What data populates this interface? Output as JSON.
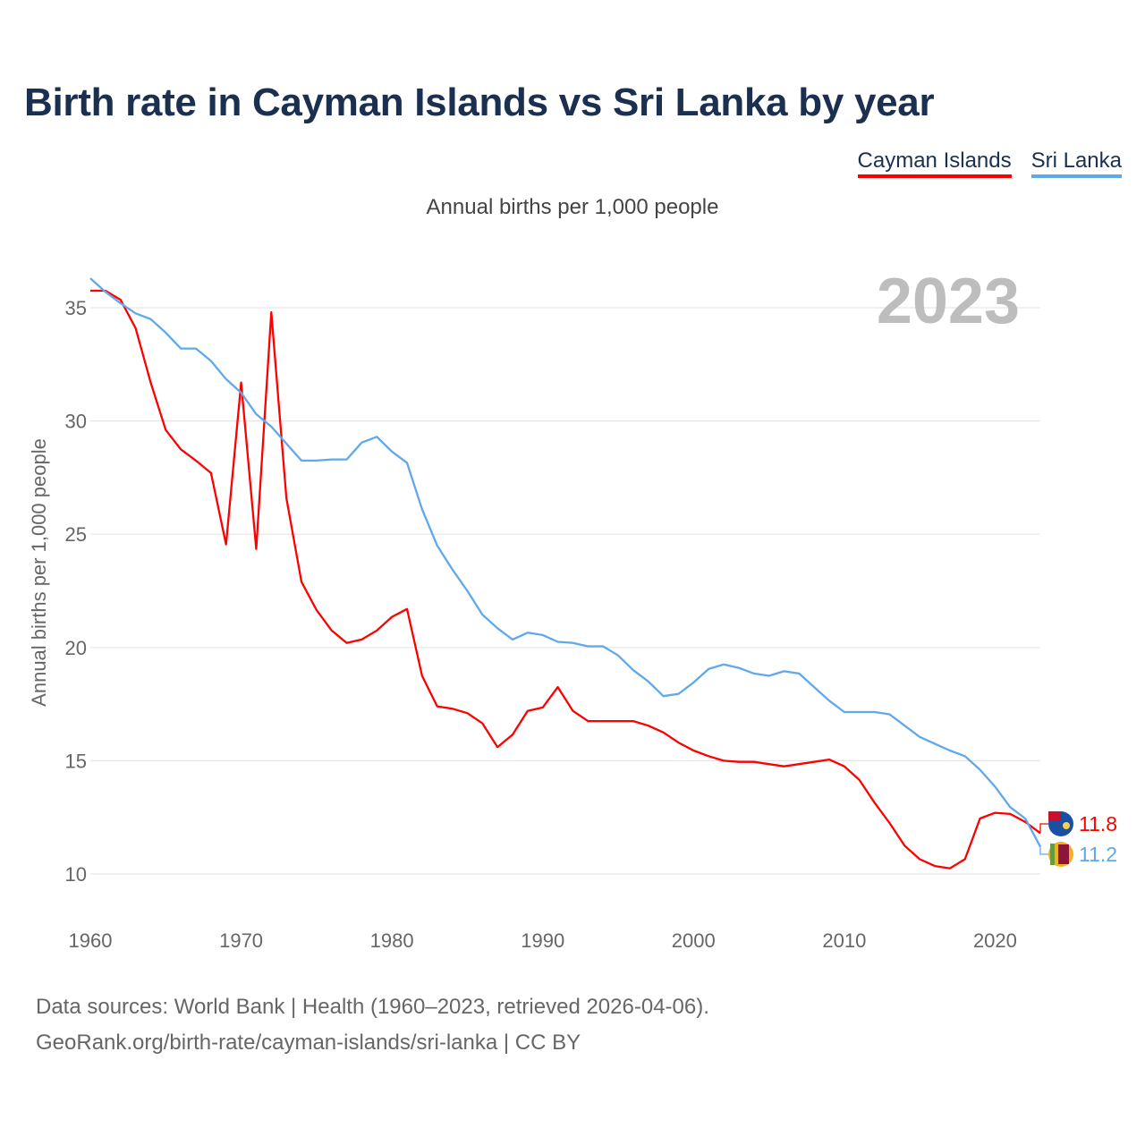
{
  "title": "Birth rate in Cayman Islands vs Sri Lanka by year",
  "legend": [
    "Cayman Islands",
    "Sri Lanka"
  ],
  "subtitle": "Annual births per 1,000 people",
  "footer": {
    "line1": "Data sources: World Bank | Health (1960–2023, retrieved 2026-04-06).",
    "line2": "GeoRank.org/birth-rate/cayman-islands/sri-lanka | CC BY"
  },
  "chart_data": {
    "type": "line",
    "title": "Birth rate in Cayman Islands vs Sri Lanka by year",
    "xlabel": "",
    "ylabel": "Annual births per 1,000 people",
    "year_label": "2023",
    "xlim": [
      1960,
      2023
    ],
    "ylim": [
      8,
      37.5
    ],
    "xticks": [
      1960,
      1970,
      1980,
      1990,
      2000,
      2010,
      2020
    ],
    "yticks": [
      10,
      15,
      20,
      25,
      30,
      35
    ],
    "grid": true,
    "legend_position": "top-right",
    "x_start": 1960,
    "series": [
      {
        "name": "Cayman Islands",
        "color": "#ff0000",
        "end_label": "11.8",
        "values": [
          35.75,
          35.75,
          35.35,
          34.1,
          31.7,
          29.6,
          28.75,
          28.25,
          27.7,
          24.55,
          31.7,
          24.35,
          34.8,
          26.6,
          22.9,
          21.65,
          20.75,
          20.2,
          20.35,
          20.75,
          21.35,
          21.7,
          18.75,
          17.4,
          17.3,
          17.1,
          16.65,
          15.6,
          16.15,
          17.2,
          17.35,
          18.25,
          17.2,
          16.75,
          16.75,
          16.75,
          16.75,
          16.55,
          16.25,
          15.8,
          15.45,
          15.2,
          15.0,
          14.95,
          14.95,
          14.85,
          14.75,
          14.85,
          14.95,
          15.05,
          14.75,
          14.15,
          13.15,
          12.25,
          11.25,
          10.65,
          10.35,
          10.25,
          10.65,
          12.45,
          12.7,
          12.65,
          12.3,
          11.8
        ]
      },
      {
        "name": "Sri Lanka",
        "color": "#5fa8ec",
        "end_label": "11.2",
        "values": [
          36.3,
          35.7,
          35.2,
          34.75,
          34.5,
          33.9,
          33.2,
          33.2,
          32.65,
          31.85,
          31.25,
          30.3,
          29.75,
          29.0,
          28.25,
          28.25,
          28.3,
          28.3,
          29.05,
          29.3,
          28.65,
          28.15,
          26.1,
          24.5,
          23.45,
          22.5,
          21.45,
          20.85,
          20.35,
          20.65,
          20.55,
          20.25,
          20.2,
          20.05,
          20.05,
          19.65,
          19.0,
          18.5,
          17.85,
          17.95,
          18.45,
          19.05,
          19.25,
          19.1,
          18.85,
          18.75,
          18.95,
          18.85,
          18.25,
          17.65,
          17.15,
          17.15,
          17.15,
          17.05,
          16.55,
          16.05,
          15.75,
          15.45,
          15.2,
          14.6,
          13.85,
          12.95,
          12.45,
          11.2
        ]
      }
    ]
  }
}
